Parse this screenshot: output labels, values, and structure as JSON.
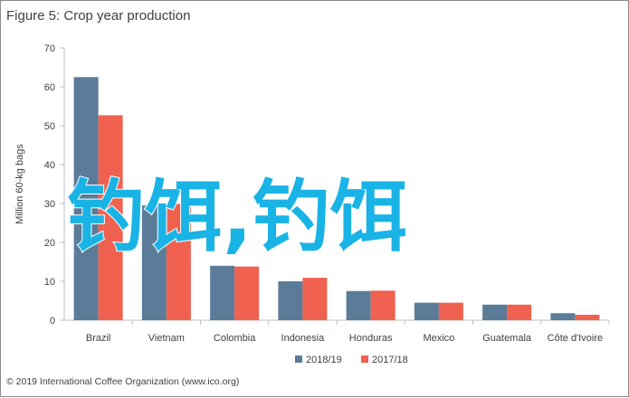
{
  "title": "Figure 5: Crop year production",
  "credit": "© 2019 International Coffee Organization (www.ico.org)",
  "overlay_text": "钓饵,钓饵",
  "colors": {
    "s2018": "#5b7c99",
    "s2017": "#f0614f",
    "axis": "#bfbfbf",
    "overlay": "#19b3e6"
  },
  "chart_data": {
    "type": "bar",
    "title": "Figure 5: Crop year production",
    "xlabel": "",
    "ylabel": "Million 60-kg bags",
    "ylim": [
      0,
      70
    ],
    "yticks": [
      0,
      10,
      20,
      30,
      40,
      50,
      60,
      70
    ],
    "grid": false,
    "legend_position": "bottom",
    "categories": [
      "Brazil",
      "Vietnam",
      "Colombia",
      "Indonesia",
      "Honduras",
      "Mexico",
      "Guatemala",
      "Côte d'Ivoire"
    ],
    "series": [
      {
        "name": "2018/19",
        "values": [
          62.5,
          29.5,
          14.0,
          10.0,
          7.5,
          4.5,
          4.0,
          1.8
        ]
      },
      {
        "name": "2017/18",
        "values": [
          52.7,
          29.9,
          13.8,
          10.9,
          7.6,
          4.5,
          4.0,
          1.4
        ]
      }
    ]
  }
}
